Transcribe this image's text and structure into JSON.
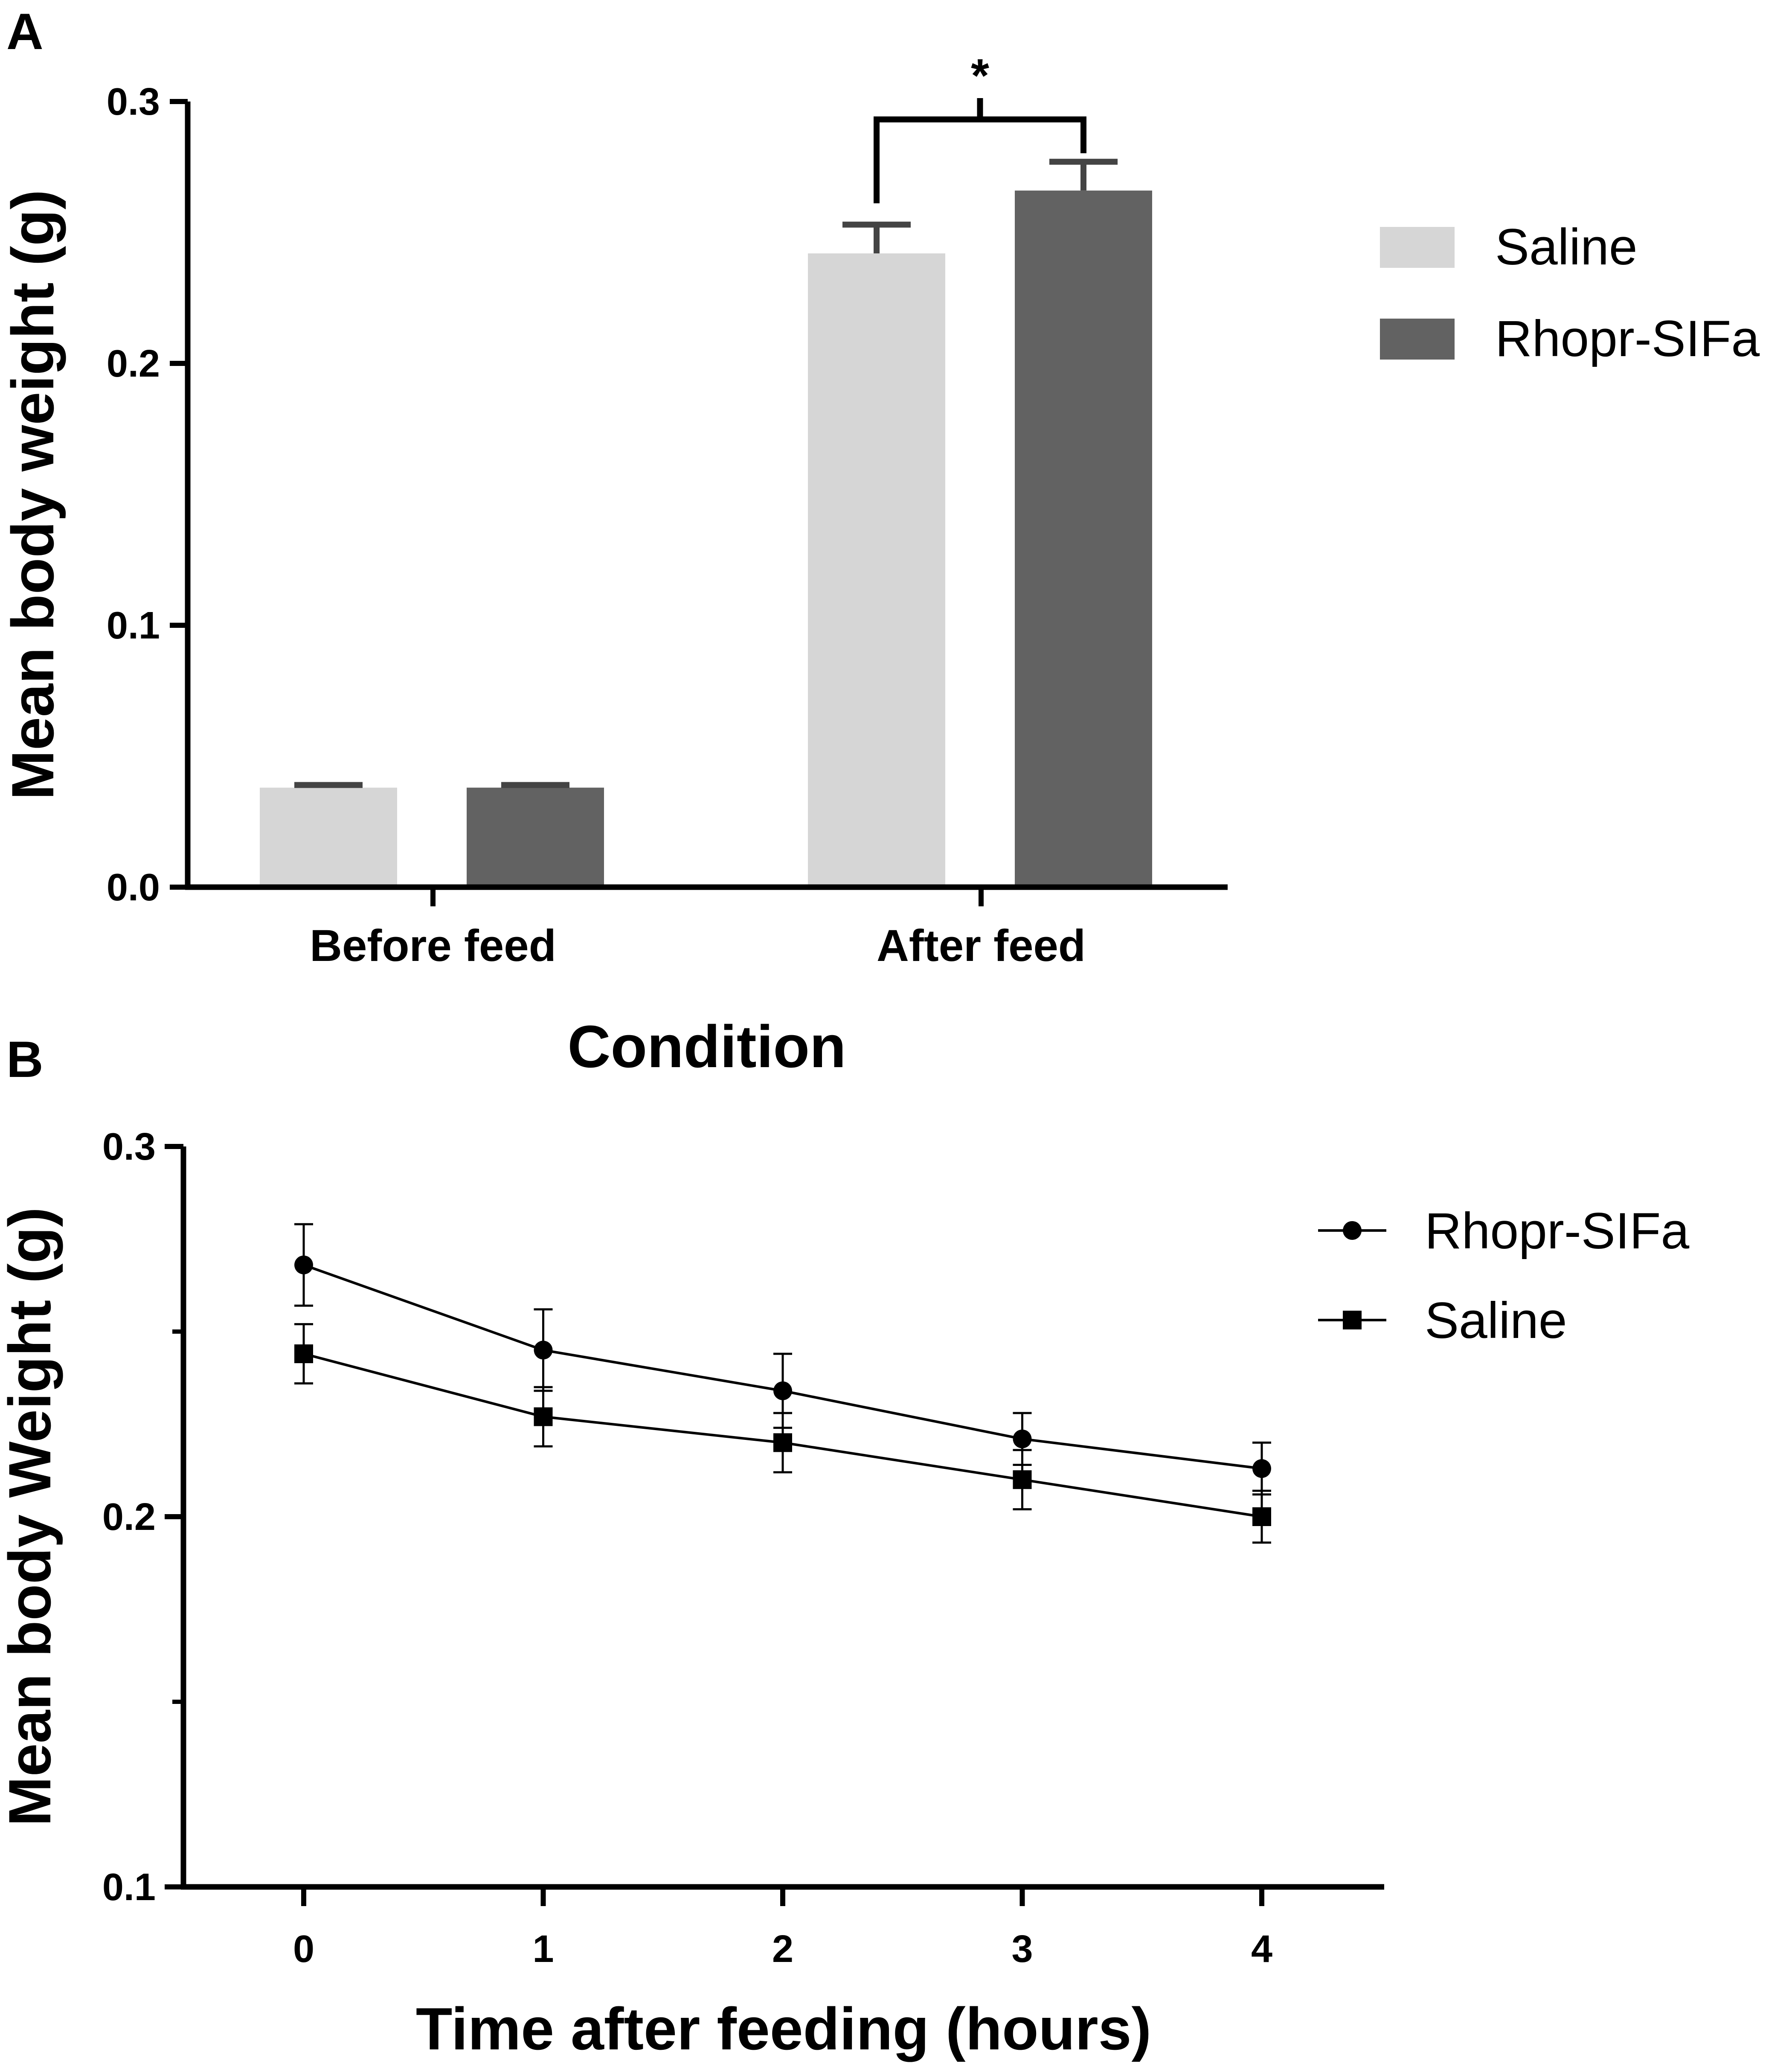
{
  "chart_data": [
    {
      "panel": "A",
      "type": "bar",
      "xlabel": "Condition",
      "ylabel": "Mean body weight (g)",
      "ylim": [
        0,
        0.3
      ],
      "yticks": [
        "0.0",
        "0.1",
        "0.2",
        "0.3"
      ],
      "categories": [
        "Before feed",
        "After feed"
      ],
      "series": [
        {
          "name": "Saline",
          "color": "#d6d6d6",
          "values": [
            0.038,
            0.242
          ],
          "errors": [
            0.001,
            0.011
          ]
        },
        {
          "name": "Rhopr-SIFa",
          "color": "#626262",
          "values": [
            0.038,
            0.266
          ],
          "errors": [
            0.001,
            0.011
          ]
        }
      ],
      "annotation": "*",
      "legend": "top-right"
    },
    {
      "panel": "B",
      "type": "line",
      "xlabel": "Time after feeding (hours)",
      "ylabel": "Mean body Weight (g)",
      "ylim": [
        0.1,
        0.3
      ],
      "yticks": [
        "0.1",
        "0.2",
        "0.3"
      ],
      "x": [
        0,
        1,
        2,
        3,
        4
      ],
      "xticks": [
        "0",
        "1",
        "2",
        "3",
        "4"
      ],
      "series": [
        {
          "name": "Rhopr-SIFa",
          "marker": "circle",
          "values": [
            0.268,
            0.245,
            0.234,
            0.221,
            0.213
          ],
          "errors": [
            0.011,
            0.011,
            0.01,
            0.007,
            0.007
          ]
        },
        {
          "name": "Saline",
          "marker": "square",
          "values": [
            0.244,
            0.227,
            0.22,
            0.21,
            0.2
          ],
          "errors": [
            0.008,
            0.008,
            0.008,
            0.008,
            0.007
          ]
        }
      ],
      "legend": "top-right"
    }
  ]
}
